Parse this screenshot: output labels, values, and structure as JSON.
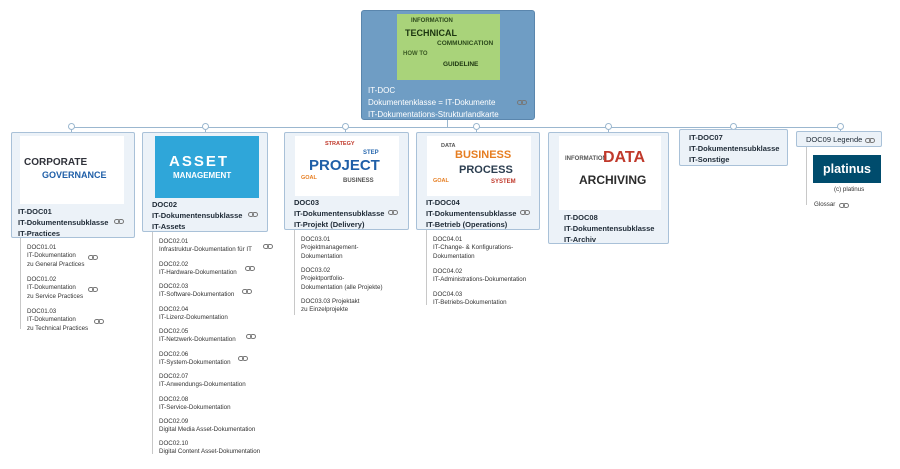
{
  "root": {
    "lines": [
      "IT-DOC",
      "Dokumentenklasse = IT-Dokumente",
      "IT-Dokumentations-Strukturlandkarte"
    ],
    "image_words": [
      "TECHNICAL",
      "COMMUNICATION",
      "HOW TO",
      "GUIDELINE",
      "INFORMATION"
    ]
  },
  "branches": [
    {
      "id": "doc01",
      "lines": [
        "IT-DOC01",
        "IT-Dokumentensubklasse",
        "IT-Practices"
      ],
      "image_words": [
        "CORPORATE",
        "GOVERNANCE"
      ],
      "leaves": [
        {
          "lines": [
            "DOC01.01",
            "IT-Dokumentation",
            "zu General Practices"
          ]
        },
        {
          "lines": [
            "DOC01.02",
            "IT-Dokumentation",
            "zu Service Practices"
          ]
        },
        {
          "lines": [
            "DOC01.03",
            "IT-Dokumentation",
            "zu Technical Practices"
          ]
        }
      ]
    },
    {
      "id": "doc02",
      "lines": [
        "DOC02",
        "IT-Dokumentensubklasse",
        "IT-Assets"
      ],
      "image_words": [
        "ASSET",
        "MANAGEMENT"
      ],
      "leaves": [
        {
          "lines": [
            "DOC02.01",
            "Infrastruktur-Dokumentation für IT"
          ]
        },
        {
          "lines": [
            "DOC02.02",
            "IT-Hardware-Dokumentation"
          ]
        },
        {
          "lines": [
            "DOC02.03",
            "IT-Software-Dokumentation"
          ]
        },
        {
          "lines": [
            "DOC02.04",
            "IT-Lizenz-Dokumentation"
          ]
        },
        {
          "lines": [
            "DOC02.05",
            "IT-Netzwerk-Dokumentation"
          ]
        },
        {
          "lines": [
            "DOC02.06",
            "IT-System-Dokumentation"
          ]
        },
        {
          "lines": [
            "DOC02.07",
            "IT-Anwendungs-Dokumentation"
          ]
        },
        {
          "lines": [
            "DOC02.08",
            "IT-Service-Dokumentation"
          ]
        },
        {
          "lines": [
            "DOC02.09",
            "Digital Media Asset-Dokumentation"
          ]
        },
        {
          "lines": [
            "DOC02.10",
            "Digital Content Asset-Dokumentation"
          ]
        }
      ]
    },
    {
      "id": "doc03",
      "lines": [
        "DOC03",
        "IT-Dokumentensubklasse",
        "IT-Projekt (Delivery)"
      ],
      "image_words": [
        "PROJECT",
        "STRATEGY",
        "STEP",
        "GOAL",
        "BUSINESS"
      ],
      "leaves": [
        {
          "lines": [
            "DOC03.01",
            "Projektmanagement-",
            "Dokumentation"
          ]
        },
        {
          "lines": [
            "DOC03.02",
            "Projektportfolio-",
            "Dokumentation (alle Projekte)"
          ]
        },
        {
          "lines": [
            "DOC03.03 Projektakt",
            "zu Einzelprojekte"
          ]
        }
      ]
    },
    {
      "id": "doc04",
      "lines": [
        "IT-DOC04",
        "IT-Dokumentensubklasse",
        "IT-Betrieb (Operations)"
      ],
      "image_words": [
        "BUSINESS",
        "PROCESS",
        "SYSTEM",
        "DATA",
        "GOAL"
      ],
      "leaves": [
        {
          "lines": [
            "DOC04.01",
            "IT-Change- & Konfigurations-",
            "Dokumentation"
          ]
        },
        {
          "lines": [
            "DOC04.02",
            "IT-Administrations-Dokumentation"
          ]
        },
        {
          "lines": [
            "DOC04.03",
            "IT-Betriebs-Dokumentation"
          ]
        }
      ]
    },
    {
      "id": "doc08",
      "lines": [
        "IT-DOC08",
        "IT-Dokumentensubklasse",
        "IT-Archiv"
      ],
      "image_words": [
        "DATA",
        "ARCHIVING",
        "INFORMATION"
      ]
    },
    {
      "id": "doc07",
      "lines": [
        "IT-DOC07",
        "IT-Dokumentensubklasse",
        "IT-Sonstige"
      ]
    },
    {
      "id": "doc09",
      "lines": [
        "DOC09 Legende"
      ],
      "logo": "platinus",
      "logo_caption": "(c) platinus",
      "glossar": "Glossar"
    }
  ],
  "colors": {
    "root_bg": "#6f9dc4",
    "node_bg": "#ecf2f8",
    "node_border": "#a9c1d8",
    "platinus": "#004c6d"
  }
}
